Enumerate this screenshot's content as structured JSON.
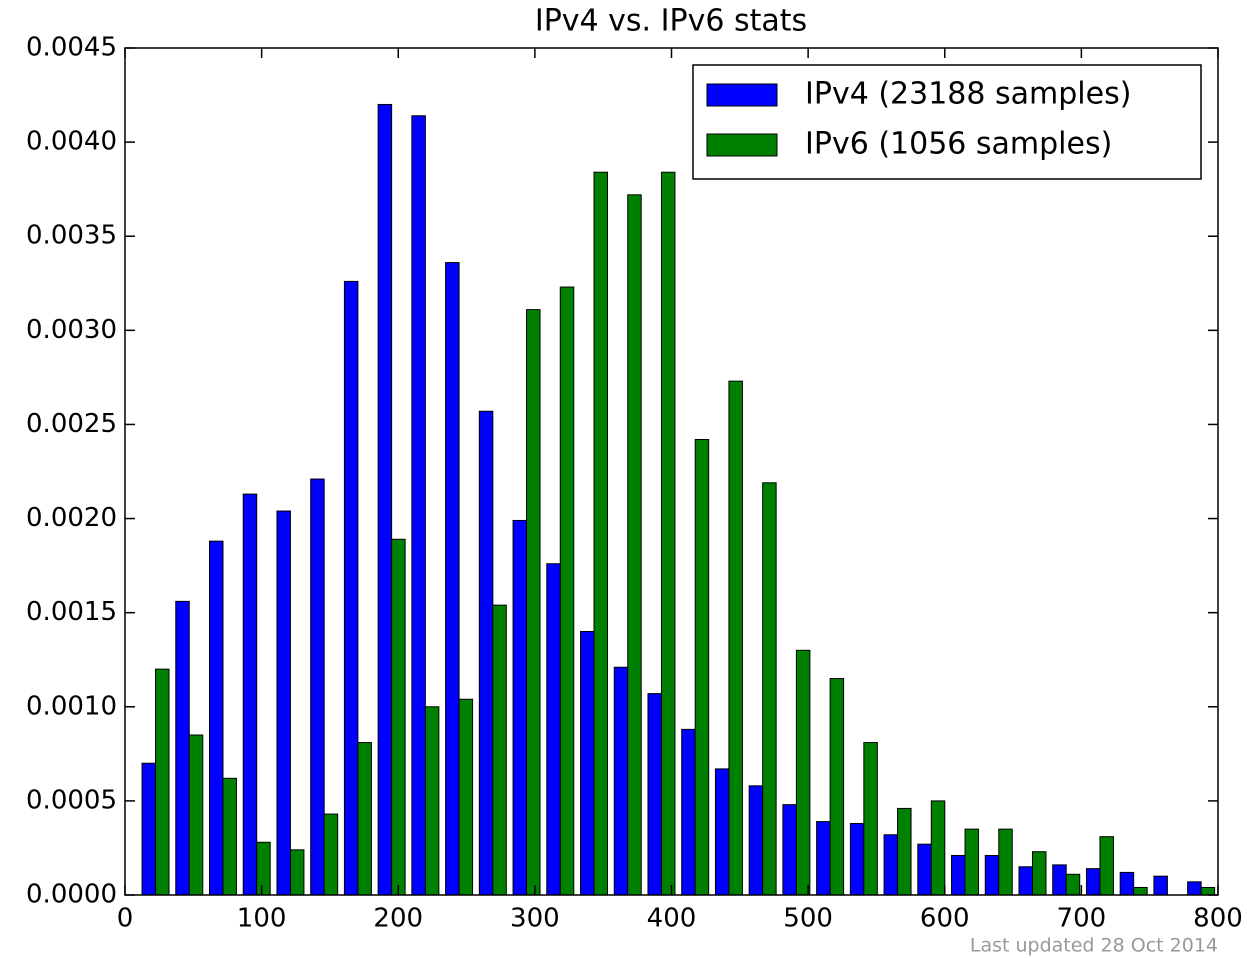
{
  "chart_data": {
    "type": "histogram",
    "title": "IPv4 vs. IPv6 stats",
    "bins": [
      10,
      34.6875,
      59.375,
      84.0625,
      108.75,
      133.4375,
      158.125,
      182.8125,
      207.5,
      232.1875,
      256.875,
      281.5625,
      306.25,
      330.9375,
      355.625,
      380.3125,
      405,
      429.6875,
      454.375,
      479.0625,
      503.75,
      528.4375,
      553.125,
      577.8125,
      602.5,
      627.1875,
      651.875,
      676.5625,
      701.25,
      725.9375,
      750.625,
      775.3125,
      800
    ],
    "series": [
      {
        "name": "IPv4 (23188 samples)",
        "color": "#0000ff",
        "values": [
          0.0007,
          0.00156,
          0.00188,
          0.00213,
          0.00204,
          0.00221,
          0.00326,
          0.0042,
          0.00414,
          0.00336,
          0.00257,
          0.00199,
          0.00176,
          0.0014,
          0.00121,
          0.00107,
          0.00088,
          0.00067,
          0.00058,
          0.00048,
          0.00039,
          0.00038,
          0.00032,
          0.00027,
          0.00021,
          0.00021,
          0.00015,
          0.00016,
          0.00014,
          0.00012,
          0.0001,
          7e-05
        ]
      },
      {
        "name": "IPv6 (1056 samples)",
        "color": "#008000",
        "values": [
          0.0012,
          0.00085,
          0.00062,
          0.00028,
          0.00024,
          0.00043,
          0.00081,
          0.00189,
          0.001,
          0.00104,
          0.00154,
          0.00311,
          0.00323,
          0.00384,
          0.00372,
          0.00384,
          0.00242,
          0.00273,
          0.00219,
          0.0013,
          0.00115,
          0.00081,
          0.00046,
          0.0005,
          0.00035,
          0.00035,
          0.00023,
          0.00011,
          0.00031,
          4e-05,
          0,
          4e-05
        ]
      }
    ],
    "xlim": [
      0,
      800
    ],
    "xticks": [
      0,
      100,
      200,
      300,
      400,
      500,
      600,
      700,
      800
    ],
    "ylim": [
      0,
      0.0045
    ],
    "yticks": [
      {
        "value": 0,
        "label": "0.0000"
      },
      {
        "value": 0.0005,
        "label": "0.0005"
      },
      {
        "value": 0.001,
        "label": "0.0010"
      },
      {
        "value": 0.0015,
        "label": "0.0015"
      },
      {
        "value": 0.002,
        "label": "0.0020"
      },
      {
        "value": 0.0025,
        "label": "0.0025"
      },
      {
        "value": 0.003,
        "label": "0.0030"
      },
      {
        "value": 0.0035,
        "label": "0.0035"
      },
      {
        "value": 0.004,
        "label": "0.0040"
      },
      {
        "value": 0.0045,
        "label": "0.0045"
      }
    ],
    "legend": "upper right",
    "footer": "Last updated 28 Oct 2014"
  }
}
